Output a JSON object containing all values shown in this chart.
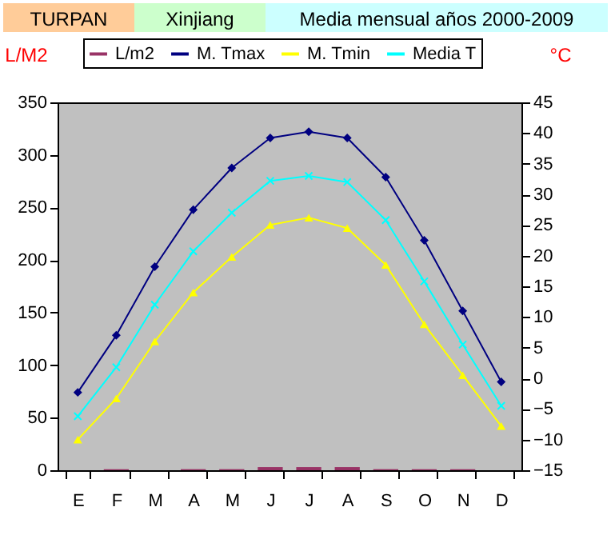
{
  "chart_data": {
    "type": "bar",
    "title": "TURPAN",
    "subtitle": "Xinjiang",
    "annotations": [
      "Media mensual años 2000-2009"
    ],
    "ylabel": "L/M2",
    "y2label": "°C",
    "categories": [
      "E",
      "F",
      "M",
      "A",
      "M",
      "J",
      "J",
      "A",
      "S",
      "O",
      "N",
      "D"
    ],
    "series": [
      {
        "name": "L/m2",
        "color": "#993366",
        "values": [
          0,
          1,
          0,
          1,
          1,
          3,
          3,
          3,
          1,
          1,
          1,
          0
        ]
      },
      {
        "name": "M. Tmax",
        "type": "line",
        "axis": "y2",
        "color": "#000080",
        "marker": "diamond",
        "values": [
          -2.3,
          7,
          18.2,
          27.5,
          34.3,
          39.2,
          40.2,
          39.2,
          32.8,
          22.5,
          11,
          -0.6
        ]
      },
      {
        "name": "M. Tmin",
        "type": "line",
        "axis": "y2",
        "color": "#ffff00",
        "marker": "triangle",
        "values": [
          -10,
          -3.3,
          6,
          14,
          19.8,
          25,
          26.2,
          24.5,
          18.5,
          8.8,
          0.5,
          -7.8
        ]
      },
      {
        "name": "Media T",
        "type": "line",
        "axis": "y2",
        "color": "#00ffff",
        "marker": "cross",
        "values": [
          -6.2,
          1.8,
          12,
          20.7,
          27,
          32.2,
          33,
          32,
          25.8,
          15.8,
          5.5,
          -4.5
        ]
      }
    ],
    "ylim": [
      0,
      350
    ],
    "yticks": [
      0,
      50,
      100,
      150,
      200,
      250,
      300,
      350
    ],
    "y2lim": [
      -15,
      45
    ],
    "y2ticks": [
      -15,
      -10,
      -5,
      0,
      5,
      10,
      15,
      20,
      25,
      30,
      35,
      40,
      45
    ],
    "grid": false,
    "legend": "top"
  }
}
